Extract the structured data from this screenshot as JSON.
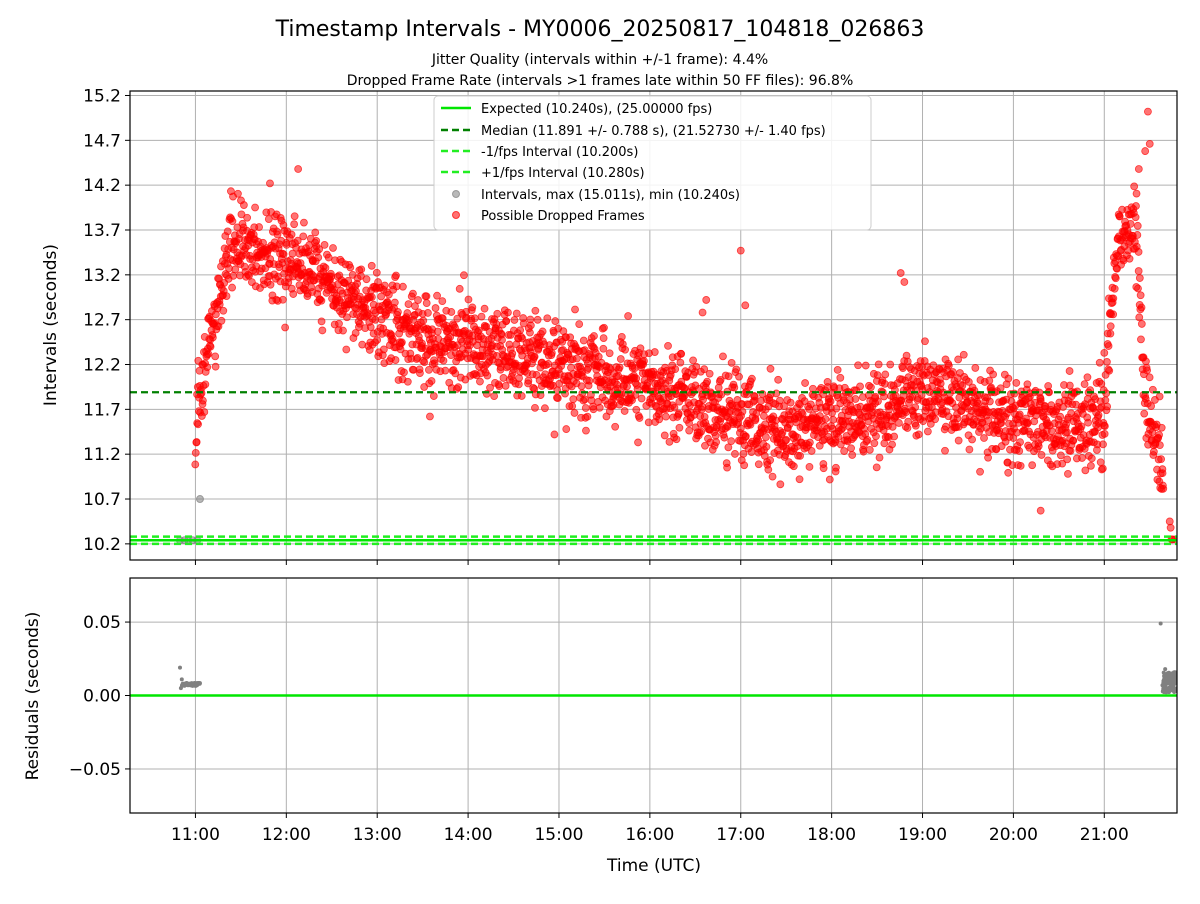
{
  "colors": {
    "expected": "#00e600",
    "median": "#008000",
    "interval_band": "#22ee22",
    "normal_points": "#808080",
    "dropped_points": "#ff0000",
    "residual_line": "#00e600",
    "grid": "#b0b0b0"
  },
  "chart_data": [
    {
      "type": "scatter",
      "title": "Timestamp Intervals - MY0006_20250817_104818_026863",
      "subtitle_lines": [
        "Jitter Quality (intervals within +/-1 frame): 4.4%",
        "Dropped Frame Rate (intervals >1 frames late within 50 FF files): 96.8%"
      ],
      "ylabel": "Intervals (seconds)",
      "xlabel": "",
      "ylim": [
        10.02,
        15.25
      ],
      "yticks": [
        10.2,
        10.7,
        11.2,
        11.7,
        12.2,
        12.7,
        13.2,
        13.7,
        14.2,
        14.7,
        15.2
      ],
      "ytick_labels": [
        "10.2",
        "10.7",
        "11.2",
        "11.7",
        "12.2",
        "12.7",
        "13.2",
        "13.7",
        "14.2",
        "14.7",
        "15.2"
      ],
      "x_unit": "hours UTC",
      "xlim": [
        10.28,
        21.8
      ],
      "xticks": [
        11,
        12,
        13,
        14,
        15,
        16,
        17,
        18,
        19,
        20,
        21
      ],
      "grid": true,
      "legend_position": "upper center",
      "legend": [
        {
          "label": "Expected (10.240s), (25.00000 fps)",
          "style": "solid-line",
          "color_key": "expected"
        },
        {
          "label": "Median (11.891 +/- 0.788 s), (21.52730 +/- 1.40 fps)",
          "style": "dashed-line",
          "color_key": "median"
        },
        {
          "label": "-1/fps Interval (10.200s)",
          "style": "dashed-line",
          "color_key": "interval_band"
        },
        {
          "label": "+1/fps Interval (10.280s)",
          "style": "dashed-line",
          "color_key": "interval_band"
        },
        {
          "label": "Intervals, max (15.011s), min (10.240s)",
          "style": "marker",
          "color_key": "normal_points"
        },
        {
          "label": "Possible Dropped Frames",
          "style": "marker",
          "color_key": "dropped_points"
        }
      ],
      "reference_lines": {
        "expected": 10.24,
        "median": 11.891,
        "minus_fps": 10.2,
        "plus_fps": 10.28
      },
      "series": [
        {
          "name": "Intervals, max (15.011s), min (10.240s)",
          "x": [
            10.83,
            10.88,
            10.92,
            10.97,
            11.02,
            11.05
          ],
          "y": [
            10.24,
            10.24,
            10.24,
            10.24,
            10.24,
            10.7
          ]
        },
        {
          "name": "Possible Dropped Frames",
          "trend": {
            "x": [
              11.0,
              11.1,
              11.2,
              11.35,
              11.5,
              11.7,
              12.0,
              12.3,
              12.6,
              13.0,
              13.5,
              14.0,
              14.5,
              15.0,
              15.5,
              16.0,
              16.5,
              17.0,
              17.5,
              18.0,
              18.5,
              19.0,
              19.5,
              20.0,
              20.5,
              21.0,
              21.15,
              21.25,
              21.35,
              21.45,
              21.5,
              21.6,
              21.65
            ],
            "y": [
              11.4,
              12.2,
              12.7,
              13.3,
              13.6,
              13.45,
              13.35,
              13.3,
              13.0,
              12.75,
              12.45,
              12.5,
              12.35,
              12.2,
              12.05,
              11.95,
              11.75,
              11.6,
              11.45,
              11.6,
              11.65,
              11.9,
              11.75,
              11.55,
              11.5,
              11.65,
              13.6,
              13.7,
              13.75,
              11.8,
              11.55,
              11.2,
              10.85
            ]
          },
          "spread": 0.32,
          "outliers": [
            {
              "x": 21.48,
              "y": 15.02
            },
            {
              "x": 21.5,
              "y": 14.66
            },
            {
              "x": 21.45,
              "y": 14.58
            },
            {
              "x": 21.38,
              "y": 14.38
            },
            {
              "x": 12.13,
              "y": 14.38
            },
            {
              "x": 11.82,
              "y": 14.22
            },
            {
              "x": 17.0,
              "y": 13.47
            },
            {
              "x": 18.76,
              "y": 13.22
            },
            {
              "x": 18.8,
              "y": 13.12
            },
            {
              "x": 20.3,
              "y": 10.57
            },
            {
              "x": 21.72,
              "y": 10.45
            },
            {
              "x": 21.73,
              "y": 10.38
            },
            {
              "x": 21.75,
              "y": 10.25
            },
            {
              "x": 21.78,
              "y": 10.25
            },
            {
              "x": 21.74,
              "y": 10.25
            },
            {
              "x": 17.05,
              "y": 12.86
            },
            {
              "x": 16.58,
              "y": 12.78
            },
            {
              "x": 16.62,
              "y": 12.92
            },
            {
              "x": 21.0,
              "y": 12.33
            },
            {
              "x": 13.58,
              "y": 11.62
            },
            {
              "x": 14.95,
              "y": 11.42
            },
            {
              "x": 15.08,
              "y": 11.48
            },
            {
              "x": 16.85,
              "y": 11.05
            },
            {
              "x": 17.35,
              "y": 10.95
            },
            {
              "x": 20.6,
              "y": 10.98
            }
          ]
        }
      ]
    },
    {
      "type": "scatter",
      "title": "",
      "ylabel": "Residuals (seconds)",
      "xlabel": "Time (UTC)",
      "ylim": [
        -0.08,
        0.08
      ],
      "yticks": [
        0.05,
        0.0,
        -0.05
      ],
      "ytick_labels": [
        "0.05",
        "0.00",
        "−0.05"
      ],
      "xlim": [
        10.28,
        21.8
      ],
      "xticks": [
        11,
        12,
        13,
        14,
        15,
        16,
        17,
        18,
        19,
        20,
        21
      ],
      "xtick_labels": [
        "11:00",
        "12:00",
        "13:00",
        "14:00",
        "15:00",
        "16:00",
        "17:00",
        "18:00",
        "19:00",
        "20:00",
        "21:00"
      ],
      "grid": true,
      "zero_line": 0.0,
      "series": [
        {
          "name": "Residuals",
          "x": [
            10.83,
            10.84,
            10.85,
            10.86,
            10.88,
            10.9,
            10.92,
            10.94,
            10.96,
            10.98,
            11.0,
            11.02,
            11.04,
            21.62,
            21.64,
            21.66,
            21.67,
            21.68,
            21.7,
            21.72,
            21.74,
            21.75,
            21.77,
            21.78,
            21.79,
            21.65,
            21.69,
            21.73,
            21.76
          ],
          "y": [
            0.019,
            0.005,
            0.011,
            0.008,
            0.008,
            0.008,
            0.008,
            0.008,
            0.008,
            0.008,
            0.008,
            0.008,
            0.008,
            0.049,
            0.007,
            0.01,
            0.018,
            0.005,
            0.012,
            0.009,
            0.015,
            0.006,
            0.011,
            0.008,
            0.013,
            0.003,
            0.014,
            0.004,
            0.01
          ]
        }
      ]
    }
  ]
}
